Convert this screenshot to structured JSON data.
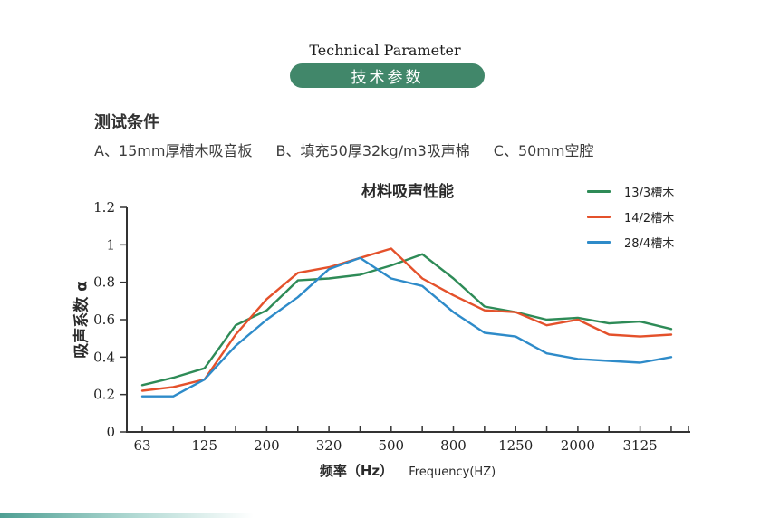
{
  "page": {
    "header_en": "Technical Parameter",
    "header_zh": "技术参数",
    "section_title": "测试条件",
    "conditions": {
      "a": "A、15mm厚槽木吸音板",
      "b": "B、填充50厚32kg/m3吸声棉",
      "c": "C、50mm空腔"
    }
  },
  "chart_data": {
    "type": "line",
    "title": "材料吸声性能",
    "xlabel_zh": "频率（Hz）",
    "xlabel_en": "Frequency(HZ)",
    "ylabel": "吸声系数 α",
    "x": [
      63,
      80,
      125,
      160,
      200,
      250,
      320,
      400,
      500,
      630,
      800,
      1000,
      1250,
      1600,
      2000,
      2500,
      3125,
      4000
    ],
    "x_tick_labels": [
      "63",
      "",
      "125",
      "",
      "200",
      "",
      "320",
      "",
      "500",
      "",
      "800",
      "",
      "1250",
      "",
      "2000",
      "",
      "3125",
      ""
    ],
    "y_ticks": [
      0,
      0.2,
      0.4,
      0.6,
      0.8,
      1,
      1.2
    ],
    "ylim": [
      0,
      1.2
    ],
    "grid": false,
    "legend_position": "top-right",
    "series": [
      {
        "name": "13/3槽木",
        "color": "#2e8b57",
        "values": [
          0.25,
          0.29,
          0.34,
          0.57,
          0.65,
          0.81,
          0.82,
          0.84,
          0.89,
          0.95,
          0.82,
          0.67,
          0.64,
          0.6,
          0.61,
          0.58,
          0.59,
          0.55
        ]
      },
      {
        "name": "14/2槽木",
        "color": "#e4512b",
        "values": [
          0.22,
          0.24,
          0.28,
          0.52,
          0.71,
          0.85,
          0.88,
          0.93,
          0.98,
          0.82,
          0.73,
          0.65,
          0.64,
          0.57,
          0.6,
          0.52,
          0.51,
          0.52
        ]
      },
      {
        "name": "28/4槽木",
        "color": "#2e8bc9",
        "values": [
          0.19,
          0.19,
          0.28,
          0.46,
          0.6,
          0.72,
          0.87,
          0.93,
          0.82,
          0.78,
          0.64,
          0.53,
          0.51,
          0.42,
          0.39,
          0.38,
          0.37,
          0.4
        ]
      }
    ]
  },
  "colors": {
    "badge_bg": "#41876a",
    "axis": "#333333"
  }
}
